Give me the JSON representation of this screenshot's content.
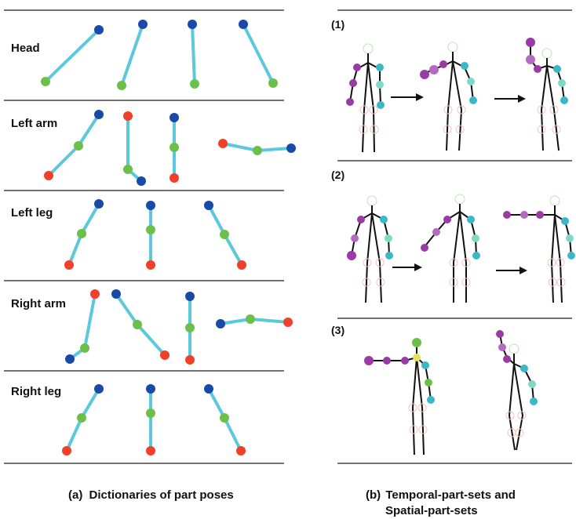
{
  "part_dictionaries": {
    "rows": [
      {
        "label": "Head"
      },
      {
        "label": "Left arm"
      },
      {
        "label": "Left leg"
      },
      {
        "label": "Right arm"
      },
      {
        "label": "Right leg"
      }
    ]
  },
  "sets": {
    "panels": [
      {
        "label": "(1)"
      },
      {
        "label": "(2)"
      },
      {
        "label": "(3)"
      }
    ]
  },
  "captions": {
    "left_prefix": "(a)",
    "left_text": "Dictionaries of part poses",
    "right_prefix": "(b)",
    "right_line1": "Temporal-part-sets and",
    "right_line2": "Spatial-part-sets"
  },
  "colors": {
    "bone": "#5bc8dc",
    "blue": "#1a4aa8",
    "green": "#6cc04a",
    "red": "#f0402a",
    "purple": "#9a3aa6",
    "teal": "#3ab8c8",
    "skeleton": "#111111"
  }
}
